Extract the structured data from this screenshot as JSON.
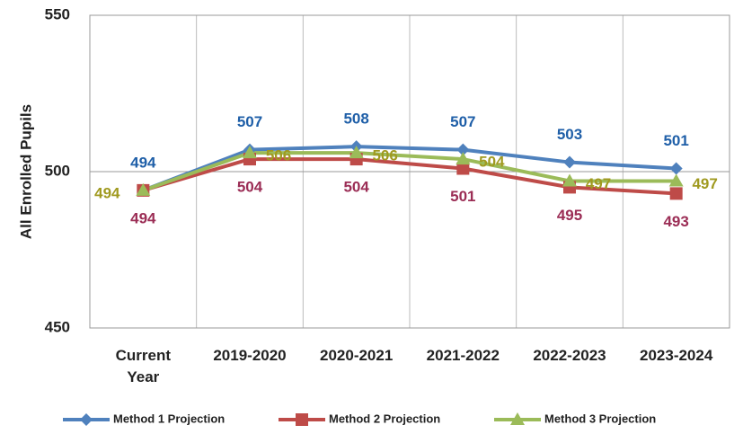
{
  "chart_data": {
    "type": "line",
    "y_label": "All Enrolled Pupils",
    "categories": [
      "Current Year",
      "2019-2020",
      "2020-2021",
      "2021-2022",
      "2022-2023",
      "2023-2024"
    ],
    "series": [
      {
        "name": "Method 1 Projection",
        "color": "#4f81bd",
        "label_color": "#1f5fa8",
        "marker": "diamond",
        "values": [
          494,
          507,
          508,
          507,
          503,
          501
        ]
      },
      {
        "name": "Method 2 Projection",
        "color": "#be4b48",
        "label_color": "#9b2d55",
        "marker": "square",
        "values": [
          494,
          504,
          504,
          501,
          495,
          493
        ]
      },
      {
        "name": "Method 3 Projection",
        "color": "#9bbb59",
        "label_color": "#a09a20",
        "marker": "triangle",
        "values": [
          494,
          506,
          506,
          504,
          497,
          497
        ]
      }
    ],
    "ylim": [
      450,
      550
    ],
    "yticks": [
      450,
      500,
      550
    ],
    "grid": true,
    "legend": "bottom"
  }
}
